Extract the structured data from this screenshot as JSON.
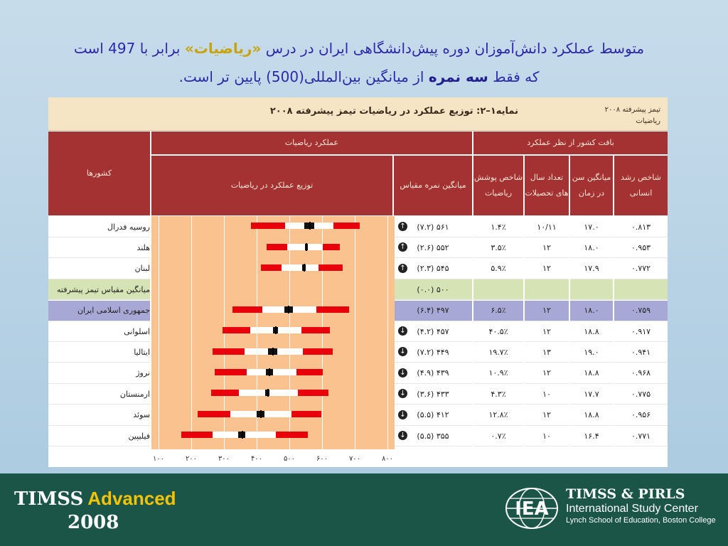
{
  "slide": {
    "title_line1_a": "متوسط عملکرد دانش‌آموزان دوره پیش‌دانشگاهی ایران در درس ",
    "title_line1_subject": "«ریاضیات»",
    "title_line1_b": " برابر با 497 است",
    "title_line2_a": "که فقط ",
    "title_line2_bold": "سه نمره",
    "title_line2_b": " از میانگین بین‌المللی(500) پایین تر است."
  },
  "exhibit": {
    "title": "نمایه۱–۲: توزیع عملکرد در ریاضیات تیمز پیشرفته ۲۰۰۸",
    "corner_line1": "تیمز پیشرفته ۲۰۰۸",
    "corner_line2": "ریاضیات",
    "headers": {
      "countries": "کشورها",
      "math_performance": "عملکرد ریاضیات",
      "distribution": "توزیع عملکرد در ریاضیات",
      "mean_scale": "میانگین نمره مقیاس",
      "country_context": "بافت کشور از نظر عملکرد",
      "coverage_index": "شاخص پوشش ریاضیات",
      "years_schooling": "تعداد سال های تحصیلات",
      "avg_age": "میانگین سن در زمان",
      "hdi": "شاخص رشد انسانی"
    },
    "x_ticks": [
      "۱۰۰",
      "۲۰۰",
      "۳۰۰",
      "۴۰۰",
      "۵۰۰",
      "۶۰۰",
      "۷۰۰",
      "۸۰۰"
    ],
    "colors": {
      "header": "#a43232",
      "header_text": "#f5e6d6",
      "avg_row": "#d6e3b5",
      "iran_row": "#a8a8d6",
      "plot_bg": "#f9c28e",
      "percentile": "#e8000b"
    },
    "rows": [
      {
        "country": "روسیه فدرال",
        "score": "۵۶۱ (۷.۲)",
        "sig": "up",
        "coverage": "۱.۴٪",
        "years": "۱۰/۱۱",
        "age": "۱۷.۰",
        "hdi": "۰.۸۱۳",
        "highlight": "none"
      },
      {
        "country": "هلند",
        "score": "۵۵۲ (۲.۶)",
        "sig": "up",
        "coverage": "۳.۵٪",
        "years": "۱۲",
        "age": "۱۸.۰",
        "hdi": "۰.۹۵۳",
        "highlight": "none"
      },
      {
        "country": "لبنان",
        "score": "۵۴۵ (۲.۳)",
        "sig": "up",
        "coverage": "۵.۹٪",
        "years": "۱۲",
        "age": "۱۷.۹",
        "hdi": "۰.۷۷۲",
        "highlight": "none"
      },
      {
        "country": "میانگین مقیاس تیمز پیشرفته",
        "score": "۵۰۰ (۰.۰)",
        "sig": "",
        "coverage": "",
        "years": "",
        "age": "",
        "hdi": "",
        "highlight": "avg"
      },
      {
        "country": "جمهوری اسلامی ایران",
        "score": "۴۹۷ (۶.۴)",
        "sig": "",
        "coverage": "۶.۵٪",
        "years": "۱۲",
        "age": "۱۸.۰",
        "hdi": "۰.۷۵۹",
        "highlight": "iran"
      },
      {
        "country": "اسلوانی",
        "score": "۴۵۷ (۴.۲)",
        "sig": "down",
        "coverage": "۴۰.۵٪",
        "years": "۱۲",
        "age": "۱۸.۸",
        "hdi": "۰.۹۱۷",
        "highlight": "none"
      },
      {
        "country": "ایتالیا",
        "score": "۴۴۹ (۷.۲)",
        "sig": "down",
        "coverage": "۱۹.۷٪",
        "years": "۱۳",
        "age": "۱۹.۰",
        "hdi": "۰.۹۴۱",
        "highlight": "none"
      },
      {
        "country": "نروژ",
        "score": "۴۳۹ (۴.۹)",
        "sig": "down",
        "coverage": "۱۰.۹٪",
        "years": "۱۲",
        "age": "۱۸.۸",
        "hdi": "۰.۹۶۸",
        "highlight": "none"
      },
      {
        "country": "ارمنستان",
        "score": "۴۳۳ (۳.۶)",
        "sig": "down",
        "coverage": "۴.۳٪",
        "years": "۱۰",
        "age": "۱۷.۷",
        "hdi": "۰.۷۷۵",
        "highlight": "none"
      },
      {
        "country": "سوئد",
        "score": "۴۱۲ (۵.۵)",
        "sig": "down",
        "coverage": "۱۲.۸٪",
        "years": "۱۲",
        "age": "۱۸.۸",
        "hdi": "۰.۹۵۶",
        "highlight": "none"
      },
      {
        "country": "فیلیپین",
        "score": "۳۵۵ (۵.۵)",
        "sig": "down",
        "coverage": "۰.۷٪",
        "years": "۱۰",
        "age": "۱۶.۴",
        "hdi": "۰.۷۷۱",
        "highlight": "none"
      }
    ]
  },
  "chart_data": {
    "type": "bar",
    "title": "",
    "xlim": [
      100,
      800
    ],
    "series": [
      {
        "country": "روسیه فدرال",
        "p5": 383,
        "p25": 486,
        "ci_low": 546,
        "mean": 561,
        "ci_high": 576,
        "p75": 634,
        "p95": 716
      },
      {
        "country": "هلند",
        "p5": 431,
        "p25": 494,
        "ci_low": 547,
        "mean": 552,
        "ci_high": 557,
        "p75": 602,
        "p95": 655
      },
      {
        "country": "لبنان",
        "p5": 412,
        "p25": 476,
        "ci_low": 540,
        "mean": 545,
        "ci_high": 550,
        "p75": 590,
        "p95": 663
      },
      {
        "country": "جمهوری اسلامی ایران",
        "p5": 327,
        "p25": 417,
        "ci_low": 484,
        "mean": 497,
        "ci_high": 510,
        "p75": 583,
        "p95": 683
      },
      {
        "country": "اسلوانی",
        "p5": 295,
        "p25": 381,
        "ci_low": 449,
        "mean": 457,
        "ci_high": 465,
        "p75": 537,
        "p95": 625
      },
      {
        "country": "ایتالیا",
        "p5": 266,
        "p25": 364,
        "ci_low": 435,
        "mean": 449,
        "ci_high": 463,
        "p75": 541,
        "p95": 632
      },
      {
        "country": "نروژ",
        "p5": 271,
        "p25": 369,
        "ci_low": 429,
        "mean": 439,
        "ci_high": 449,
        "p75": 521,
        "p95": 602
      },
      {
        "country": "ارمنستان",
        "p5": 261,
        "p25": 346,
        "ci_low": 426,
        "mean": 433,
        "ci_high": 440,
        "p75": 526,
        "p95": 620
      },
      {
        "country": "سوئد",
        "p5": 219,
        "p25": 320,
        "ci_low": 401,
        "mean": 412,
        "ci_high": 423,
        "p75": 507,
        "p95": 597
      },
      {
        "country": "فیلیپین",
        "p5": 169,
        "p25": 266,
        "ci_low": 344,
        "mean": 355,
        "ci_high": 366,
        "p75": 459,
        "p95": 556
      }
    ]
  },
  "footer": {
    "timss": "TIMSS",
    "advanced": "Advanced",
    "year": "2008",
    "isc_line1": "TIMSS & PIRLS",
    "isc_line2": "International Study Center",
    "isc_line3": "Lynch School of Education, Boston College",
    "emblem": "IEA"
  }
}
